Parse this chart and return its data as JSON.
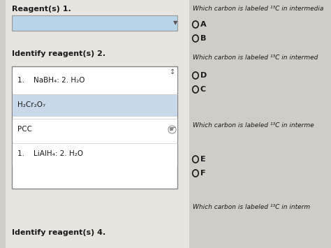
{
  "bg_color": "#d0ccc8",
  "left_panel_bg": "#e8e4e0",
  "dropdown1_color": "#b8d4e8",
  "dropdown2_bg": "#ffffff",
  "dropdown2_border": "#888888",
  "text_color": "#1a1a1a",
  "gray_text": "#555555",
  "header_text": "Reagent(s) 1.",
  "label2": "Identify reagent(s) 2.",
  "label4": "Identify reagent(s) 4.",
  "right_header1": "Which carbon is labeled ¹³C in intermedia",
  "right_header2": "Which carbon is labeled ¹³C in intermed",
  "right_header3": "Which carbon is labeled ¹³C in interme",
  "right_header4": "Which carbon is labeled ¹³C in interm",
  "options_col1": [
    "A",
    "B"
  ],
  "options_col2": [
    "D",
    "C"
  ],
  "options_col3": [
    "E",
    "F"
  ],
  "dropdown2_items": [
    "1.    NaBH₄: 2. H₂O",
    "H₂Cr₂O₇",
    "PCC",
    "1.    LiAlH₄: 2. H₂O"
  ],
  "selected_item_idx": 1,
  "selected_item_bg": "#c8d8e8"
}
